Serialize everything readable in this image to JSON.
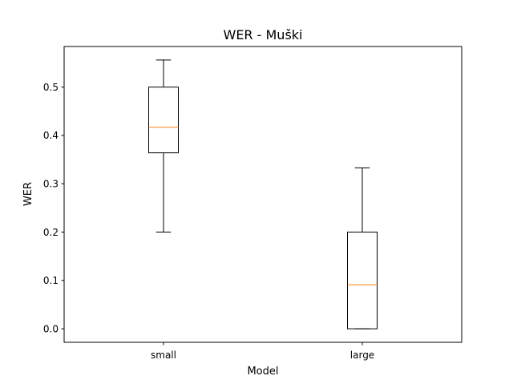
{
  "chart_data": {
    "type": "box",
    "title": "WER - Muški",
    "xlabel": "Model",
    "ylabel": "WER",
    "categories": [
      "small",
      "large"
    ],
    "ylim": [
      -0.028,
      0.584
    ],
    "yticks": [
      "0.0",
      "0.1",
      "0.2",
      "0.3",
      "0.4",
      "0.5"
    ],
    "yticks_values": [
      0.0,
      0.1,
      0.2,
      0.3,
      0.4,
      0.5
    ],
    "boxes": [
      {
        "category": "small",
        "whisker_low": 0.2,
        "q1": 0.364,
        "median": 0.417,
        "q3": 0.5,
        "whisker_high": 0.556
      },
      {
        "category": "large",
        "whisker_low": 0.0,
        "q1": 0.0,
        "median": 0.091,
        "q3": 0.2,
        "whisker_high": 0.333
      }
    ],
    "grid": false,
    "legend": "none"
  },
  "colors": {
    "box_edge": "#000000",
    "median": "#ff7f0e",
    "background": "#ffffff"
  }
}
